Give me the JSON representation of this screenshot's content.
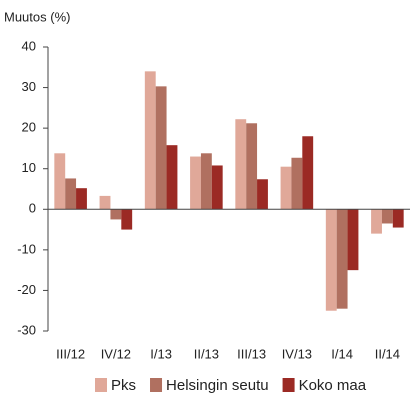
{
  "chart_data": {
    "type": "bar",
    "y_label": "Muutos (%)",
    "categories": [
      "III/12",
      "IV/12",
      "I/13",
      "II/13",
      "III/13",
      "IV/13",
      "I/14",
      "II/14"
    ],
    "series": [
      {
        "name": "Pks",
        "color": "#e0a899",
        "values": [
          13.8,
          3.3,
          34,
          13,
          22.2,
          10.5,
          -25,
          -6
        ]
      },
      {
        "name": "Helsingin seutu",
        "color": "#b07060",
        "values": [
          7.6,
          -2.5,
          30.3,
          13.8,
          21.2,
          12.7,
          -24.5,
          -3.5
        ]
      },
      {
        "name": "Koko maa",
        "color": "#9b2a24",
        "values": [
          5.2,
          -5,
          15.8,
          10.8,
          7.4,
          18,
          -15,
          -4.5
        ]
      }
    ],
    "ylim": [
      -30,
      40
    ],
    "yticks": [
      -30,
      -20,
      -10,
      0,
      10,
      20,
      30,
      40
    ],
    "grid": false,
    "legend": "bottom"
  }
}
